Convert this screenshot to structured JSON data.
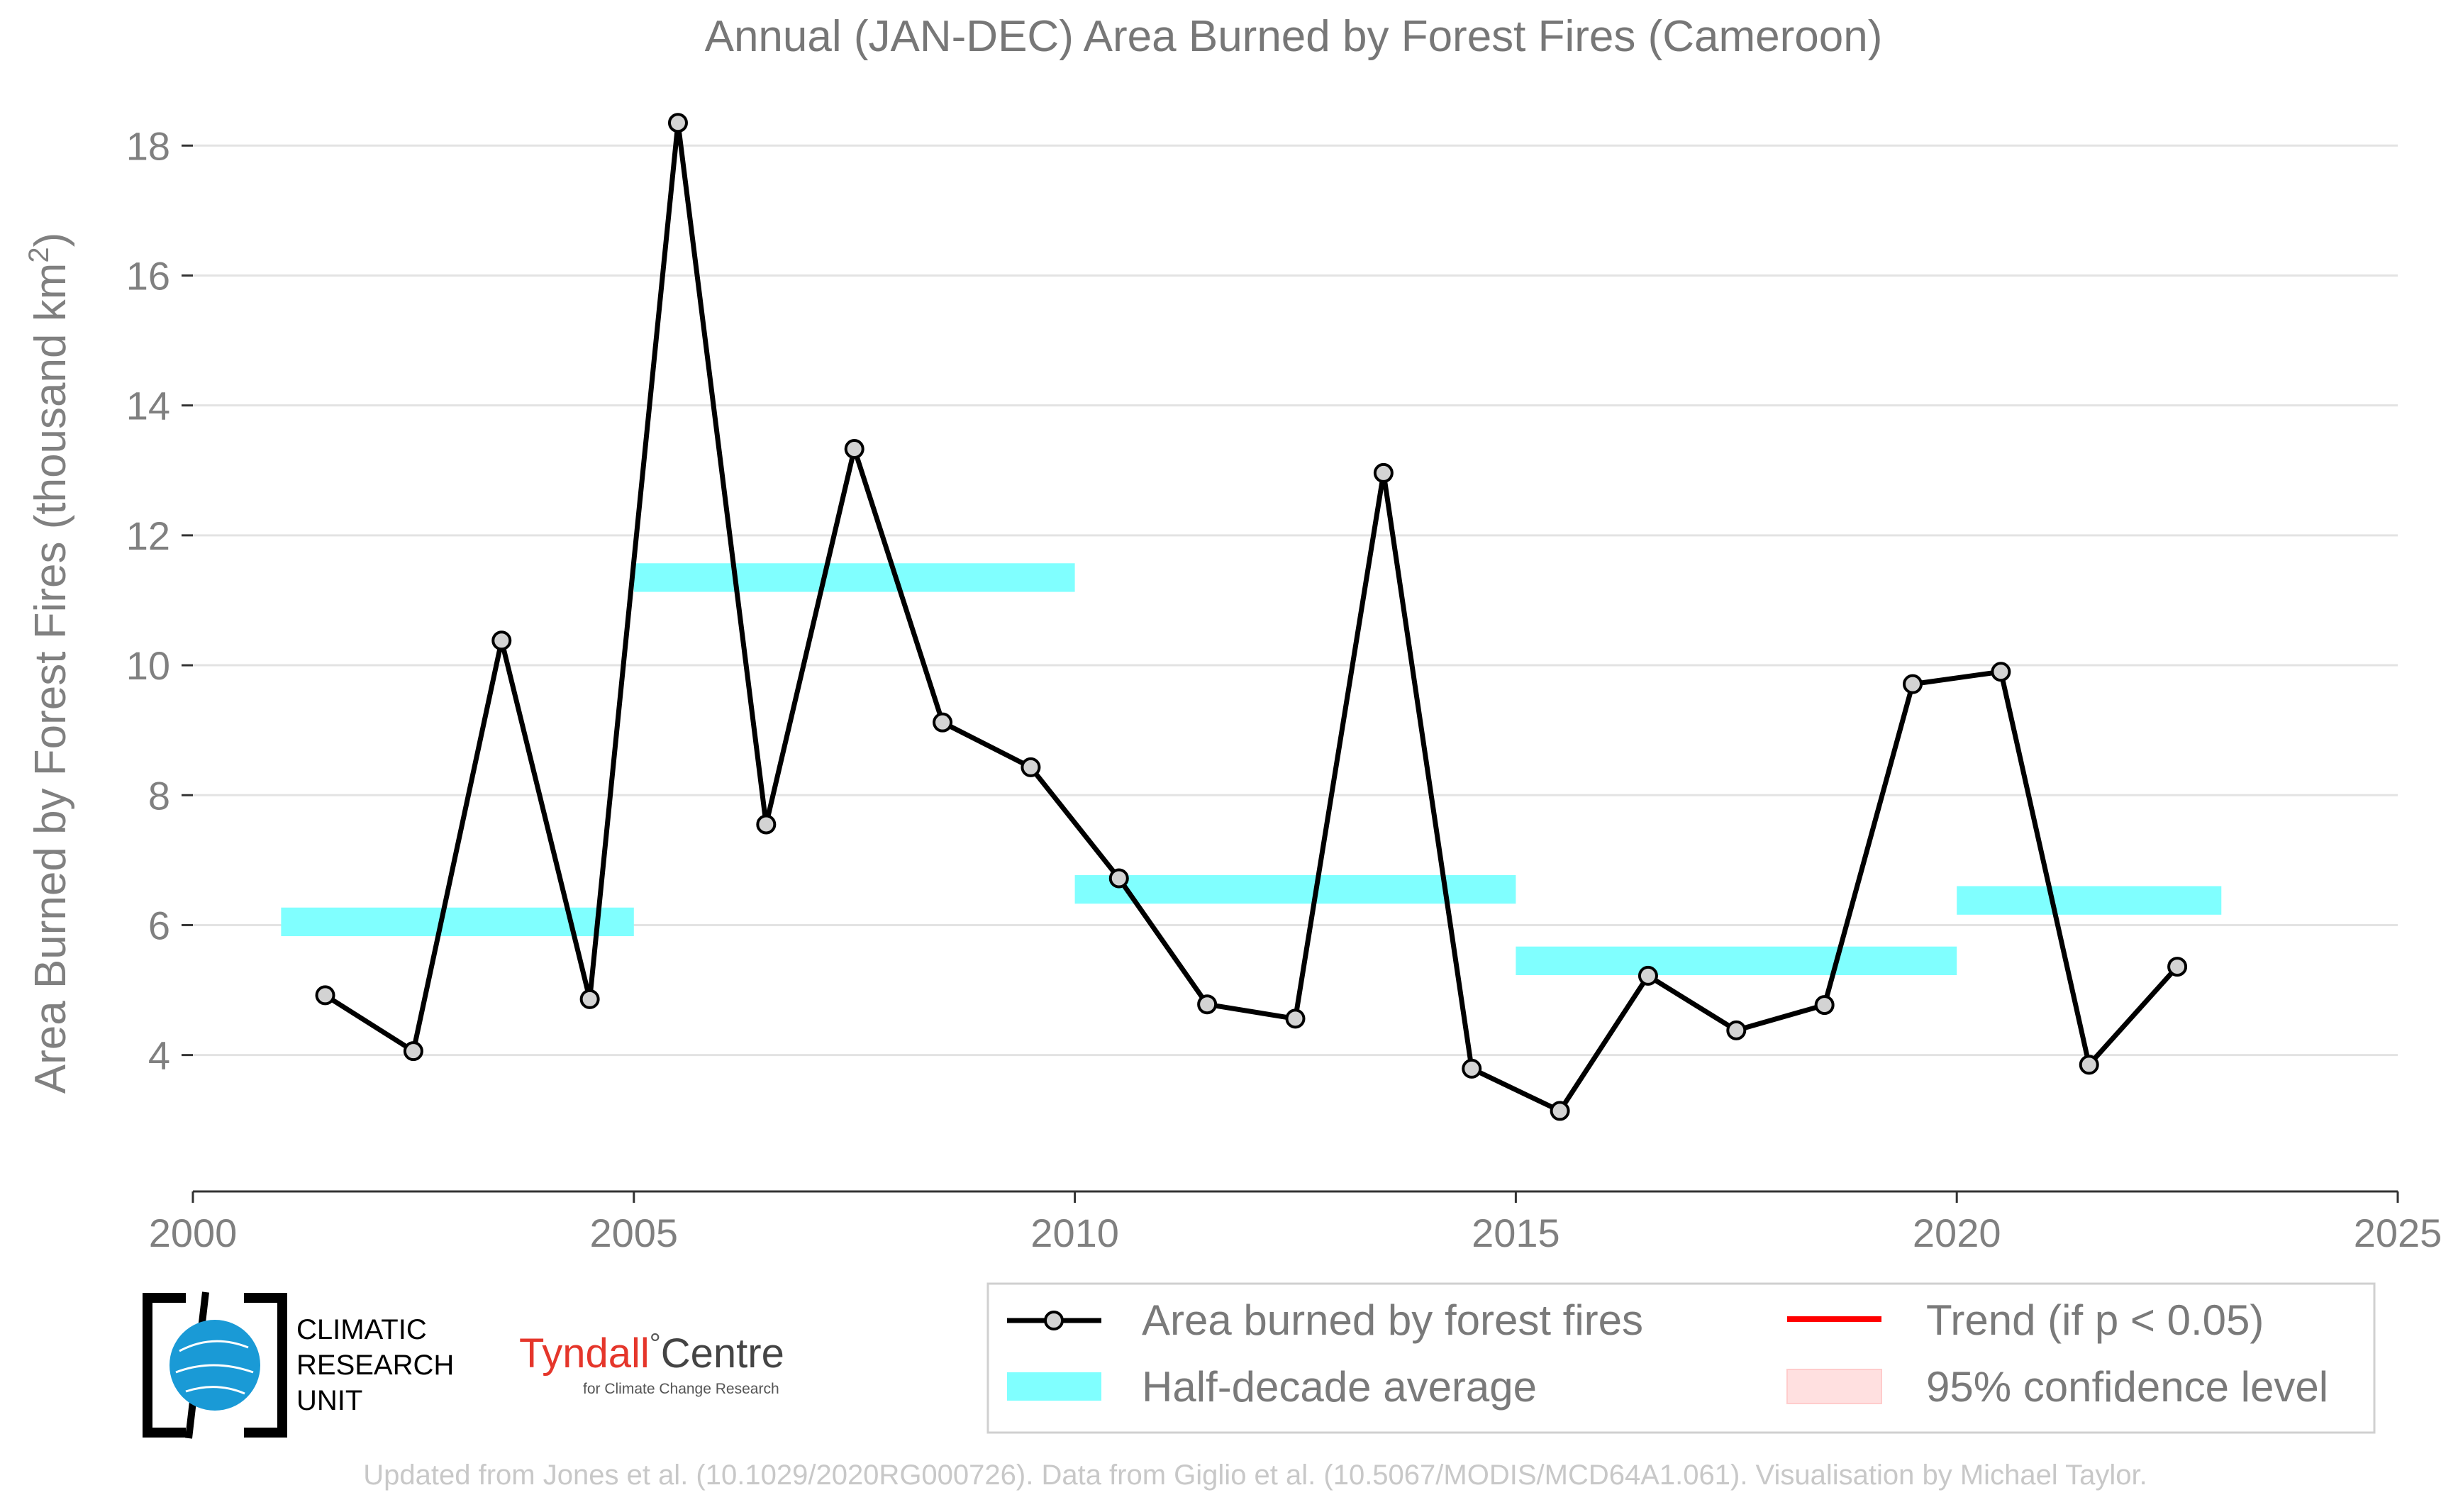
{
  "chart_data": {
    "type": "line",
    "title": "Annual (JAN-DEC) Area Burned by Forest Fires (Cameroon)",
    "ylabel_main": "Area Burned by Forest Fires (thousand km",
    "ylabel_sup": "2",
    "ylabel_close": ")",
    "xlim": [
      2000,
      2025
    ],
    "ylim": [
      1.9,
      18.8
    ],
    "x_ticks": [
      2000,
      2005,
      2010,
      2015,
      2020,
      2025
    ],
    "y_ticks": [
      4,
      6,
      8,
      10,
      12,
      14,
      16,
      18
    ],
    "grid": true,
    "series": [
      {
        "name": "Area burned by forest fires",
        "color": "#000000",
        "x": [
          2001.5,
          2002.5,
          2003.5,
          2004.5,
          2005.5,
          2006.5,
          2007.5,
          2008.5,
          2009.5,
          2010.5,
          2011.5,
          2012.5,
          2013.5,
          2014.5,
          2015.5,
          2016.5,
          2017.5,
          2018.5,
          2019.5,
          2020.5,
          2021.5,
          2022.5
        ],
        "values": [
          4.92,
          4.06,
          10.38,
          4.86,
          18.35,
          7.55,
          13.33,
          9.12,
          8.43,
          6.72,
          4.78,
          4.56,
          12.96,
          3.79,
          3.14,
          5.22,
          4.38,
          4.77,
          9.71,
          9.9,
          3.85,
          5.36
        ]
      }
    ],
    "half_decade_average": {
      "name": "Half-decade average",
      "color": "#80ffff",
      "segments": [
        {
          "x": [
            2001,
            2005
          ],
          "value": 6.05
        },
        {
          "x": [
            2005,
            2010
          ],
          "value": 11.35
        },
        {
          "x": [
            2010,
            2015
          ],
          "value": 6.55
        },
        {
          "x": [
            2015,
            2020
          ],
          "value": 5.45
        },
        {
          "x": [
            2020,
            2023
          ],
          "value": 6.38
        }
      ]
    },
    "legend": {
      "placement": "bottom-right",
      "items": [
        {
          "label": "Area burned by forest fires",
          "kind": "line-marker",
          "color": "#000000"
        },
        {
          "label": "Trend (if p < 0.05)",
          "kind": "line",
          "color": "#ff0000"
        },
        {
          "label": "Half-decade average",
          "kind": "band",
          "color": "#80ffff"
        },
        {
          "label": "95% confidence level",
          "kind": "patch",
          "color": "#ffe0e0"
        }
      ]
    }
  },
  "logos": {
    "cru_lines": [
      "CLIMATIC",
      "RESEARCH",
      "UNIT"
    ],
    "tyndall_main": "Tyndall",
    "tyndall_degree": "°",
    "tyndall_centre": "Centre",
    "tyndall_sub": "for Climate Change Research"
  },
  "credit": "Updated from Jones et al. (10.1029/2020RG000726). Data from Giglio et al. (10.5067/MODIS/MCD64A1.061). Visualisation by Michael Taylor."
}
